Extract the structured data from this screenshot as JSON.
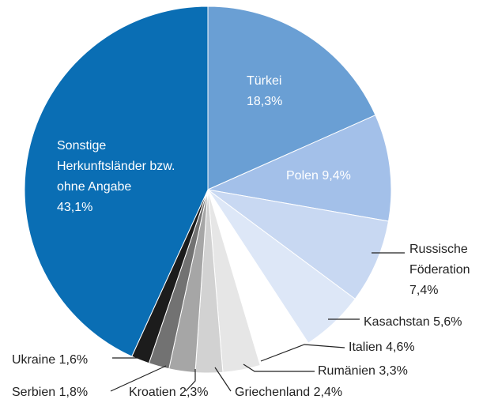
{
  "chart_data": {
    "type": "pie",
    "categories": [
      "Türkei",
      "Polen",
      "Russische Föderation",
      "Kasachstan",
      "Italien",
      "Rumänien",
      "Griechenland",
      "Kroatien",
      "Serbien",
      "Ukraine",
      "Sonstige Herkunftsländer bzw. ohne Angabe"
    ],
    "values": [
      18.3,
      9.4,
      7.4,
      5.6,
      4.6,
      3.3,
      2.4,
      2.3,
      1.8,
      1.6,
      43.1
    ],
    "value_labels": [
      "18,3%",
      "9,4%",
      "7,4%",
      "5,6%",
      "4,6%",
      "3,3%",
      "2,4%",
      "2,3%",
      "1,8%",
      "1,6%",
      "43,1%"
    ],
    "colors": [
      "#6a9fd4",
      "#a3c0e9",
      "#c8d8f2",
      "#dde7f7",
      "#ffffff",
      "#e6e6e6",
      "#d2d2d2",
      "#a6a6a6",
      "#727272",
      "#1c1c1c",
      "#0a6eb4"
    ]
  }
}
